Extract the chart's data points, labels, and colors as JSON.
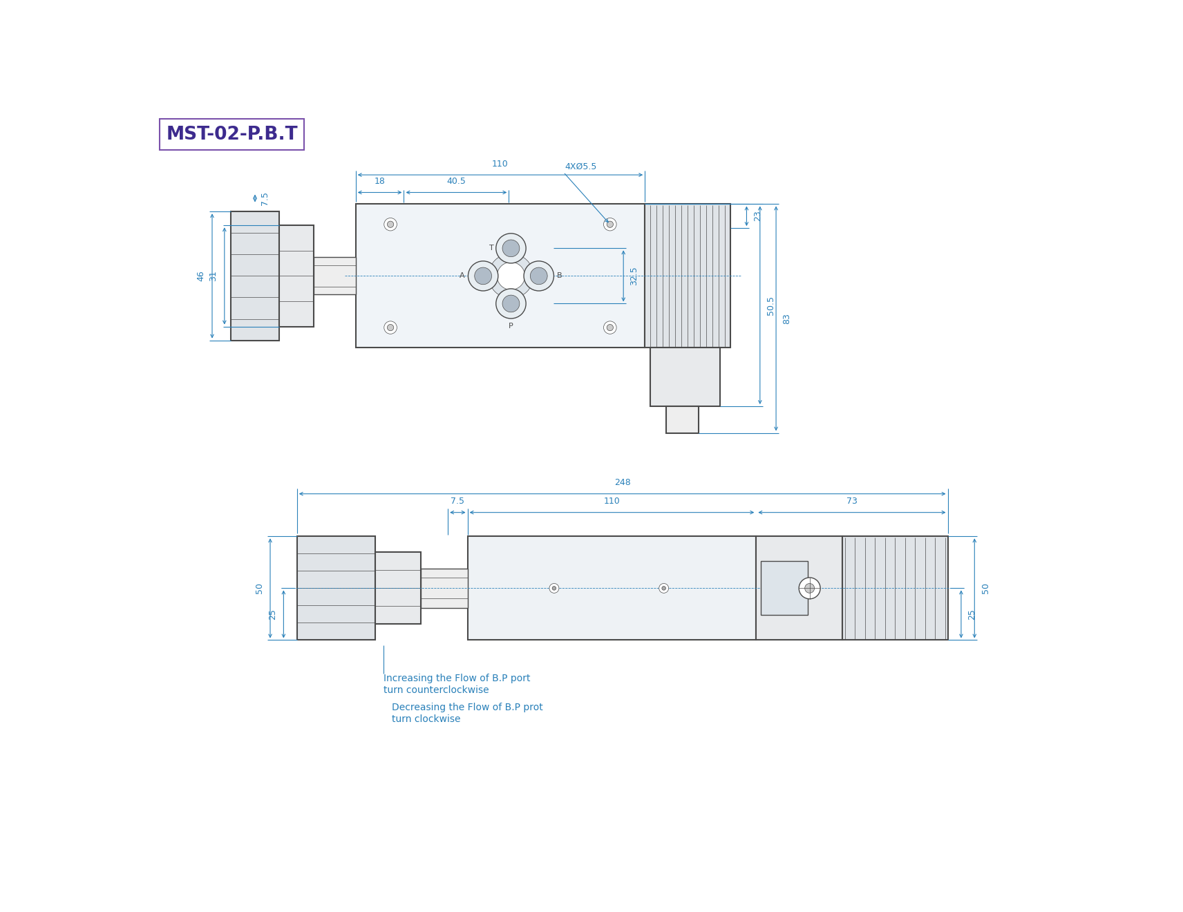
{
  "title": "MST-02-P.B.T",
  "title_color": "#3d2b8e",
  "title_border_color": "#7B52AB",
  "dim_color": "#2980b9",
  "draw_color": "#4a4a4a",
  "bg_color": "#ffffff",
  "note_color": "#2980b9",
  "notes_line1": "Increasing the Flow of B.P port",
  "notes_line2": "turn counterclockwise",
  "notes_line3": "Decreasing the Flow of B.P prot",
  "notes_line4": "turn clockwise"
}
